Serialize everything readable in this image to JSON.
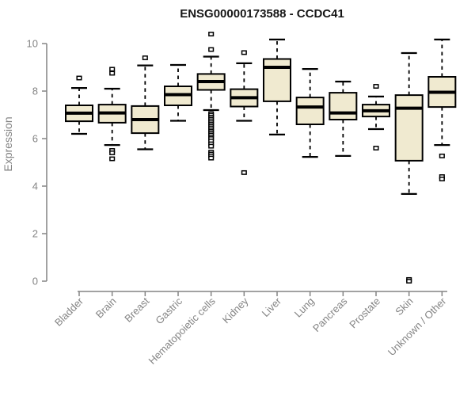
{
  "chart_data": {
    "type": "boxplot",
    "title": "ENSG00000173588 - CCDC41",
    "ylabel": "Expression",
    "ylim": [
      0,
      10
    ],
    "yticks": [
      0,
      2,
      4,
      6,
      8,
      10
    ],
    "grid": false,
    "legend": "none",
    "box_fill_color": "#F0EAD0",
    "box_line_color": "#000000",
    "axis_color": "#848484",
    "title_color": "#161616",
    "background_color": "#FFFFFF",
    "categories": [
      "Bladder",
      "Brain",
      "Breast",
      "Gastric",
      "Hematopoietic cells",
      "Kidney",
      "Liver",
      "Lung",
      "Pancreas",
      "Prostate",
      "Skin",
      "Unknown / Other"
    ],
    "series": [
      {
        "label": "Bladder",
        "whisker_low": 6.2,
        "q1": 6.73,
        "median": 7.07,
        "q3": 7.4,
        "whisker_high": 8.13,
        "outliers": [
          8.55
        ]
      },
      {
        "label": "Brain",
        "whisker_low": 5.73,
        "q1": 6.67,
        "median": 7.08,
        "q3": 7.43,
        "whisker_high": 8.1,
        "outliers": [
          8.92,
          8.75,
          5.5,
          5.4,
          5.15
        ]
      },
      {
        "label": "Breast",
        "whisker_low": 5.55,
        "q1": 6.23,
        "median": 6.8,
        "q3": 7.37,
        "whisker_high": 9.08,
        "outliers": [
          9.4
        ]
      },
      {
        "label": "Gastric",
        "whisker_low": 6.75,
        "q1": 7.4,
        "median": 7.85,
        "q3": 8.2,
        "whisker_high": 9.1,
        "outliers": []
      },
      {
        "label": "Hematopoietic cells",
        "whisker_low": 7.2,
        "q1": 8.05,
        "median": 8.4,
        "q3": 8.72,
        "whisker_high": 9.45,
        "outliers": [
          10.4,
          9.75,
          7.05,
          6.98,
          6.9,
          6.82,
          6.75,
          6.67,
          6.6,
          6.52,
          6.45,
          6.37,
          6.3,
          6.22,
          6.15,
          6.07,
          6.0,
          5.9,
          5.78,
          5.68,
          5.43,
          5.35,
          5.27,
          5.18
        ]
      },
      {
        "label": "Kidney",
        "whisker_low": 6.75,
        "q1": 7.35,
        "median": 7.72,
        "q3": 8.08,
        "whisker_high": 9.17,
        "outliers": [
          9.62,
          4.57
        ]
      },
      {
        "label": "Liver",
        "whisker_low": 6.17,
        "q1": 7.57,
        "median": 9.0,
        "q3": 9.35,
        "whisker_high": 10.17,
        "outliers": []
      },
      {
        "label": "Lung",
        "whisker_low": 5.23,
        "q1": 6.6,
        "median": 7.33,
        "q3": 7.73,
        "whisker_high": 8.93,
        "outliers": []
      },
      {
        "label": "Pancreas",
        "whisker_low": 5.27,
        "q1": 6.8,
        "median": 7.08,
        "q3": 7.93,
        "whisker_high": 8.4,
        "outliers": []
      },
      {
        "label": "Prostate",
        "whisker_low": 6.4,
        "q1": 6.93,
        "median": 7.17,
        "q3": 7.43,
        "whisker_high": 7.77,
        "outliers": [
          8.2,
          5.6
        ]
      },
      {
        "label": "Skin",
        "whisker_low": 3.67,
        "q1": 5.07,
        "median": 7.28,
        "q3": 7.83,
        "whisker_high": 9.6,
        "outliers": [
          0.07,
          0.0
        ]
      },
      {
        "label": "Unknown / Other",
        "whisker_low": 5.73,
        "q1": 7.33,
        "median": 7.95,
        "q3": 8.6,
        "whisker_high": 10.17,
        "outliers": [
          5.27,
          4.4,
          4.3
        ]
      }
    ]
  }
}
